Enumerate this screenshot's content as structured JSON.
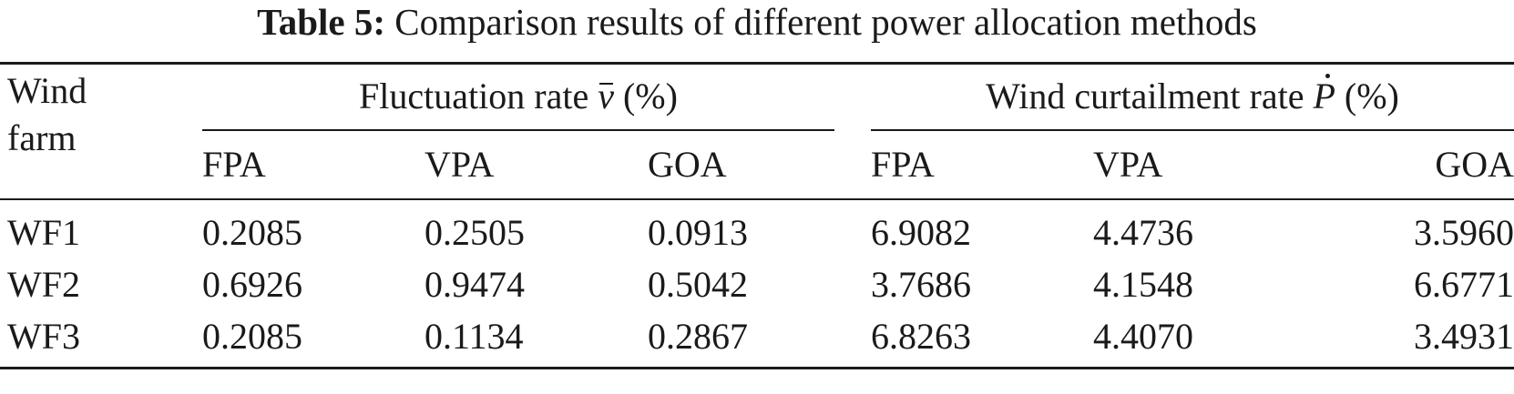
{
  "caption": {
    "label": "Table 5:",
    "text": "Comparison results of different power allocation methods"
  },
  "header": {
    "wind_farm_line1": "Wind",
    "wind_farm_line2": "farm",
    "group1": {
      "prefix": "Fluctuation rate",
      "symbol": "v",
      "suffix": "(%)"
    },
    "group2": {
      "prefix": "Wind curtailment rate",
      "symbol": "P",
      "suffix": "(%)"
    },
    "subcols": [
      "FPA",
      "VPA",
      "GOA",
      "FPA",
      "VPA",
      "GOA"
    ]
  },
  "rows": [
    {
      "name": "WF1",
      "values": [
        "0.2085",
        "0.2505",
        "0.0913",
        "6.9082",
        "4.4736",
        "3.5960"
      ]
    },
    {
      "name": "WF2",
      "values": [
        "0.6926",
        "0.9474",
        "0.5042",
        "3.7686",
        "4.1548",
        "6.6771"
      ]
    },
    {
      "name": "WF3",
      "values": [
        "0.2085",
        "0.1134",
        "0.2867",
        "6.8263",
        "4.4070",
        "3.4931"
      ]
    }
  ]
}
